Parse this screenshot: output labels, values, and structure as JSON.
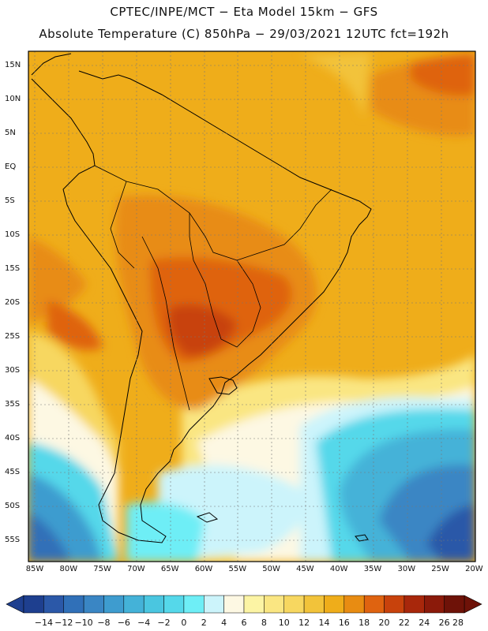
{
  "title": {
    "line1": "CPTEC/INPE/MCT −  Eta Model 15km − GFS",
    "line2": "Absolute Temperature (C) 850hPa − 29/03/2021 12UTC fct=192h"
  },
  "map": {
    "lat_labels": [
      "15N",
      "10N",
      "5N",
      "EQ",
      "5S",
      "10S",
      "15S",
      "20S",
      "25S",
      "30S",
      "35S",
      "40S",
      "45S",
      "50S",
      "55S"
    ],
    "lon_labels": [
      "85W",
      "80W",
      "75W",
      "70W",
      "65W",
      "60W",
      "55W",
      "50W",
      "45W",
      "40W",
      "35W",
      "30W",
      "25W",
      "20W"
    ],
    "lat_range": [
      -57.5,
      16.5
    ],
    "lon_range": [
      -86,
      -20
    ]
  },
  "colorbar": {
    "labels": [
      "−14",
      "−12",
      "−10",
      "−8",
      "−6",
      "−4",
      "−2",
      "0",
      "2",
      "4",
      "6",
      "8",
      "10",
      "12",
      "14",
      "16",
      "18",
      "20",
      "22",
      "24",
      "26",
      "28"
    ],
    "colors": [
      "#1e3f8f",
      "#2b58a8",
      "#3070b8",
      "#3a86c4",
      "#3e9ccf",
      "#44b2d8",
      "#4ac6e0",
      "#55d8ea",
      "#6eeef6",
      "#ccf4fb",
      "#fdf8e3",
      "#fcf4a4",
      "#fae682",
      "#f7d760",
      "#f2c33a",
      "#efad1a",
      "#e88c12",
      "#df6310",
      "#c8420c",
      "#a8270b",
      "#8b1a0a",
      "#6e1208"
    ]
  }
}
